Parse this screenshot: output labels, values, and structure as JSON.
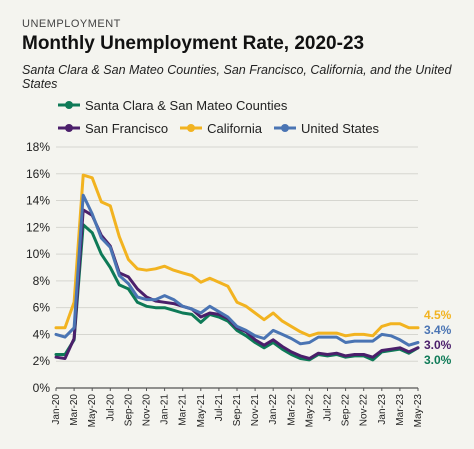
{
  "header": {
    "kicker": "UNEMPLOYMENT",
    "title": "Monthly Unemployment Rate, 2020-23",
    "subtitle": "Santa Clara & San Mateo Counties, San Francisco, California, and the United States"
  },
  "chart_data": {
    "type": "line",
    "x_labels": [
      "Jan-20",
      "Mar-20",
      "May-20",
      "Jul-20",
      "Sep-20",
      "Nov-20",
      "Jan-21",
      "Mar-21",
      "May-21",
      "Jul-21",
      "Sep-21",
      "Nov-21",
      "Jan-22",
      "Mar-22",
      "May-22",
      "Jul-22",
      "Sep-22",
      "Nov-22",
      "Jan-23",
      "Mar-23",
      "May-23"
    ],
    "y_ticks": [
      "0%",
      "2%",
      "4%",
      "6%",
      "8%",
      "10%",
      "12%",
      "14%",
      "16%",
      "18%"
    ],
    "ylim": [
      0,
      18
    ],
    "grid": true,
    "legend": "top",
    "series": [
      {
        "name": "Santa Clara & San Mateo Counties",
        "color": "#0e7a57",
        "end_label": "3.0%",
        "values": [
          2.5,
          2.5,
          3.6,
          12.2,
          11.6,
          10.0,
          9.0,
          7.7,
          7.4,
          6.4,
          6.1,
          6.0,
          6.0,
          5.8,
          5.6,
          5.5,
          4.9,
          5.5,
          5.3,
          5.0,
          4.3,
          3.9,
          3.4,
          3.0,
          3.4,
          2.9,
          2.5,
          2.2,
          2.1,
          2.5,
          2.4,
          2.5,
          2.3,
          2.4,
          2.4,
          2.1,
          2.7,
          2.8,
          2.9,
          2.6,
          3.0
        ]
      },
      {
        "name": "San Francisco",
        "color": "#4b1f6b",
        "end_label": "3.0%",
        "values": [
          2.3,
          2.2,
          3.7,
          13.3,
          12.9,
          11.4,
          10.6,
          8.6,
          8.3,
          7.4,
          6.8,
          6.5,
          6.4,
          6.3,
          6.1,
          5.9,
          5.3,
          5.6,
          5.5,
          5.2,
          4.5,
          4.2,
          3.6,
          3.2,
          3.6,
          3.1,
          2.7,
          2.4,
          2.2,
          2.6,
          2.5,
          2.6,
          2.4,
          2.5,
          2.5,
          2.3,
          2.8,
          2.9,
          3.0,
          2.7,
          3.0
        ]
      },
      {
        "name": "California",
        "color": "#f2b320",
        "end_label": "4.5%",
        "values": [
          4.5,
          4.5,
          6.4,
          15.9,
          15.7,
          13.9,
          13.6,
          11.3,
          9.6,
          8.9,
          8.8,
          8.9,
          9.1,
          8.8,
          8.6,
          8.4,
          7.9,
          8.2,
          7.9,
          7.6,
          6.4,
          6.1,
          5.6,
          5.1,
          5.6,
          5.0,
          4.6,
          4.2,
          3.9,
          4.1,
          4.1,
          4.1,
          3.9,
          4.0,
          4.0,
          3.9,
          4.6,
          4.8,
          4.8,
          4.5,
          4.5
        ]
      },
      {
        "name": "United States",
        "color": "#4a74b3",
        "end_label": "3.4%",
        "values": [
          4.0,
          3.8,
          4.5,
          14.4,
          13.0,
          11.2,
          10.5,
          8.4,
          7.8,
          6.8,
          6.6,
          6.6,
          6.9,
          6.6,
          6.1,
          5.9,
          5.6,
          6.1,
          5.7,
          5.3,
          4.6,
          4.3,
          3.9,
          3.7,
          4.3,
          4.0,
          3.7,
          3.3,
          3.4,
          3.8,
          3.8,
          3.8,
          3.4,
          3.5,
          3.5,
          3.5,
          4.0,
          3.9,
          3.6,
          3.2,
          3.4
        ]
      }
    ]
  }
}
